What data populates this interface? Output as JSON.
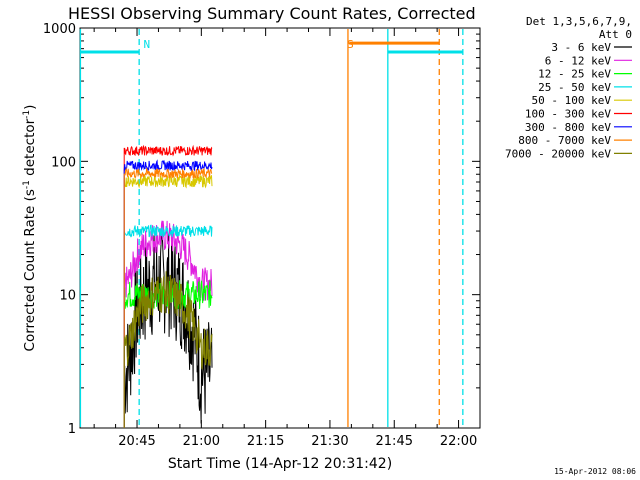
{
  "chart_data": {
    "type": "line",
    "title": "HESSI Observing Summary Count Rates, Corrected",
    "xlabel": "Start Time (14-Apr-12 20:31:42)",
    "ylabel": "Corrected Count Rate (s",
    "ylabel_sup": "-1",
    "ylabel_tail": " detector",
    "ylabel_close": ")",
    "yscale": "log",
    "xlim_minutes_after_2030": [
      1.7,
      95
    ],
    "ylim": [
      1,
      1000
    ],
    "x_ticks": [
      {
        "label": "20:45",
        "min": 15
      },
      {
        "label": "21:00",
        "min": 30
      },
      {
        "label": "21:15",
        "min": 45
      },
      {
        "label": "21:30",
        "min": 60
      },
      {
        "label": "21:45",
        "min": 75
      },
      {
        "label": "22:00",
        "min": 90
      }
    ],
    "y_ticks": [
      {
        "label": "1",
        "v": 1
      },
      {
        "label": "10",
        "v": 10
      },
      {
        "label": "100",
        "v": 100
      },
      {
        "label": "1000",
        "v": 1000
      }
    ],
    "legend_header": [
      "Det 1,3,5,6,7,9,",
      "Att 0"
    ],
    "legend_position": "right",
    "series": [
      {
        "name": "3 - 6 keV",
        "color": "#000000",
        "start": 12.0,
        "end": 32.5,
        "level": 2.6,
        "rise": 3.8,
        "noise": 0.45
      },
      {
        "name": "6 - 12 keV",
        "color": "#e020e0",
        "start": 12.0,
        "end": 32.5,
        "level": 12,
        "rise": 1.3,
        "noise": 0.14
      },
      {
        "name": "12 - 25 keV",
        "color": "#00ff00",
        "start": 12.0,
        "end": 32.5,
        "level": 10,
        "rise": 0,
        "noise": 0.12
      },
      {
        "name": "25 - 50 keV",
        "color": "#00e0e8",
        "start": 12.0,
        "end": 32.5,
        "level": 30,
        "rise": 0,
        "noise": 0.05
      },
      {
        "name": "50 - 100 keV",
        "color": "#d8c800",
        "start": 12.0,
        "end": 32.5,
        "level": 71,
        "rise": 0,
        "noise": 0.05
      },
      {
        "name": "100 - 300 keV",
        "color": "#ff0000",
        "start": 12.0,
        "end": 32.5,
        "level": 120,
        "rise": 0,
        "noise": 0.04
      },
      {
        "name": "300 - 800 keV",
        "color": "#0000ff",
        "start": 12.0,
        "end": 32.5,
        "level": 93,
        "rise": 0,
        "noise": 0.04
      },
      {
        "name": "800 - 7000 keV",
        "color": "#ff8000",
        "start": 12.0,
        "end": 32.5,
        "level": 81,
        "rise": 0,
        "noise": 0.04
      },
      {
        "name": "7000 - 20000 keV",
        "color": "#808000",
        "start": 12.0,
        "end": 32.5,
        "level": 4.0,
        "rise": 1.6,
        "noise": 0.18
      }
    ],
    "annotations": [
      {
        "text": "N",
        "color": "#00e0e8",
        "min": 16.5
      },
      {
        "text": "S",
        "color": "#ff8000",
        "min": 64.0
      }
    ],
    "flag_segments": [
      {
        "color": "#00e0e8",
        "from": 1.7,
        "to": 15.5,
        "level": 660
      },
      {
        "color": "#ff8000",
        "from": 64.5,
        "to": 85.5,
        "level": 770
      },
      {
        "color": "#00e0e8",
        "from": 73.5,
        "to": 91.0,
        "level": 660
      }
    ],
    "vertical_lines": [
      {
        "color": "#00e0e8",
        "min": 1.8,
        "style": "solid"
      },
      {
        "color": "#00e0e8",
        "min": 15.5,
        "style": "dashed"
      },
      {
        "color": "#ff8000",
        "min": 64.2,
        "style": "solid"
      },
      {
        "color": "#00e0e8",
        "min": 73.5,
        "style": "solid"
      },
      {
        "color": "#ff8000",
        "min": 85.5,
        "style": "dashed"
      },
      {
        "color": "#00e0e8",
        "min": 91.0,
        "style": "dashed"
      }
    ]
  },
  "footer": {
    "timestamp": "15-Apr-2012 08:06"
  }
}
